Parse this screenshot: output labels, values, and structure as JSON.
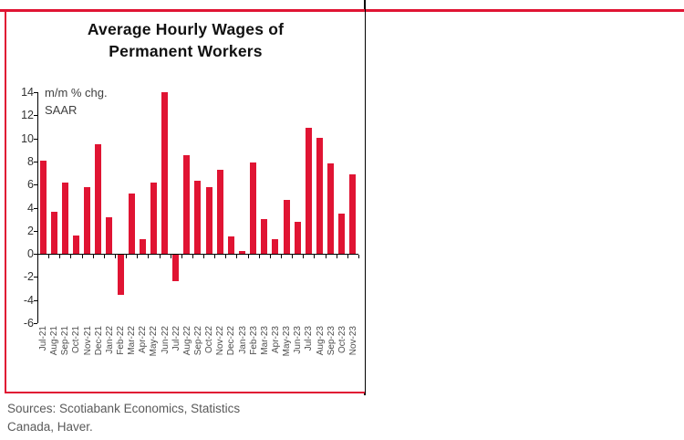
{
  "page": {
    "title_line1": "Average Hourly Wages of",
    "title_line2": "Permanent Workers",
    "annotation_line1": "m/m % chg.",
    "annotation_line2": "SAAR",
    "source_line1": "Sources: Scotiabank Economics, Statistics",
    "source_line2": "Canada, Haver.",
    "accent_color": "#e01433"
  },
  "chart_data": {
    "type": "bar",
    "title": "Average Hourly Wages of Permanent Workers",
    "ylabel": "m/m % chg. SAAR",
    "categories": [
      "Jul-21",
      "Aug-21",
      "Sep-21",
      "Oct-21",
      "Nov-21",
      "Dec-21",
      "Jan-22",
      "Feb-22",
      "Mar-22",
      "Apr-22",
      "May-22",
      "Jun-22",
      "Jul-22",
      "Aug-22",
      "Sep-22",
      "Oct-22",
      "Nov-22",
      "Dec-22",
      "Jan-23",
      "Feb-23",
      "Mar-23",
      "Apr-23",
      "May-23",
      "Jun-23",
      "Jul-23",
      "Aug-23",
      "Sep-23",
      "Oct-23",
      "Nov-23"
    ],
    "values": [
      8.1,
      3.6,
      6.2,
      1.6,
      5.8,
      9.5,
      3.2,
      -3.5,
      5.2,
      1.3,
      6.2,
      14.0,
      -2.3,
      8.5,
      6.3,
      5.8,
      7.3,
      1.5,
      0.2,
      7.9,
      3.0,
      1.3,
      4.7,
      2.8,
      10.9,
      10.0,
      7.8,
      3.5,
      6.9
    ],
    "ylim": [
      -6,
      14
    ],
    "yticks": [
      14,
      12,
      10,
      8,
      6,
      4,
      2,
      0,
      -2,
      -4,
      -6
    ],
    "bar_color": "#e01433",
    "grid": false,
    "legend": false
  }
}
